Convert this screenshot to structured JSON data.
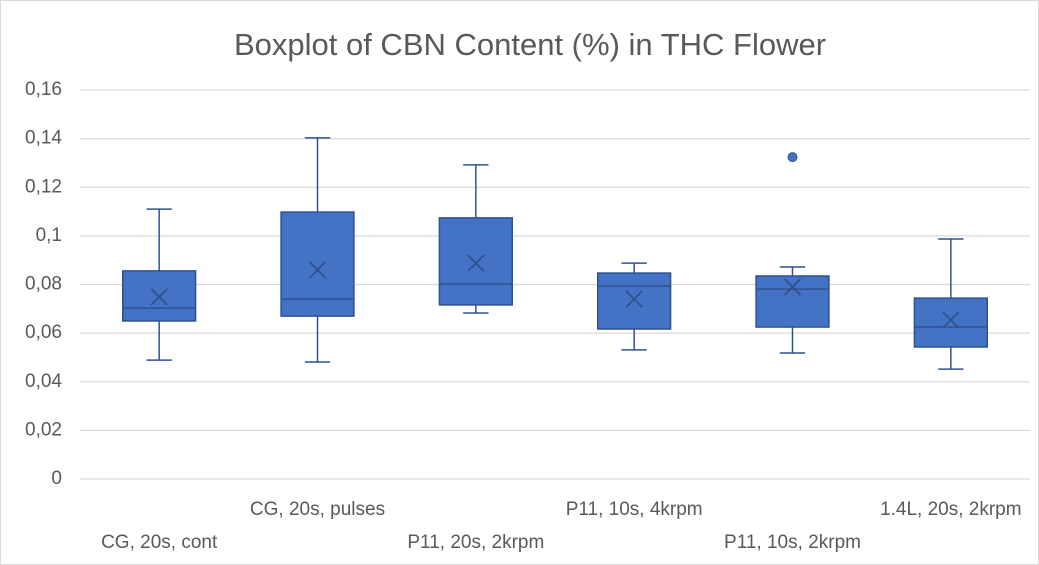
{
  "chart_data": {
    "type": "box",
    "title": "Boxplot of CBN Content (%) in THC Flower",
    "categories": [
      "CG, 20s, cont",
      "CG, 20s, pulses",
      "P11, 20s, 2krpm",
      "P11, 10s, 4krpm",
      "P11, 10s, 2krpm",
      "1.4L, 20s, 2krpm"
    ],
    "boxes": [
      {
        "whisker_low": 0.0489,
        "q1": 0.065,
        "median": 0.0703,
        "q3": 0.0856,
        "whisker_high": 0.111,
        "mean": 0.0749,
        "outliers": []
      },
      {
        "whisker_low": 0.0481,
        "q1": 0.067,
        "median": 0.074,
        "q3": 0.1098,
        "whisker_high": 0.1403,
        "mean": 0.086,
        "outliers": []
      },
      {
        "whisker_low": 0.0683,
        "q1": 0.0716,
        "median": 0.0802,
        "q3": 0.1074,
        "whisker_high": 0.1292,
        "mean": 0.0888,
        "outliers": []
      },
      {
        "whisker_low": 0.0531,
        "q1": 0.0617,
        "median": 0.0794,
        "q3": 0.0847,
        "whisker_high": 0.0888,
        "mean": 0.074,
        "outliers": []
      },
      {
        "whisker_low": 0.0518,
        "q1": 0.0625,
        "median": 0.0781,
        "q3": 0.0835,
        "whisker_high": 0.0872,
        "mean": 0.079,
        "outliers": [
          0.1324
        ]
      },
      {
        "whisker_low": 0.0452,
        "q1": 0.0543,
        "median": 0.0625,
        "q3": 0.0744,
        "whisker_high": 0.0987,
        "mean": 0.0654,
        "outliers": []
      }
    ],
    "color": "#4472c4",
    "edge_color": "#2f528f",
    "ylim": [
      0,
      0.16
    ],
    "yticks": [
      0,
      {
        "value": 0.02,
        "label": "0,02"
      },
      {
        "value": 0.04,
        "label": "0,04"
      },
      {
        "value": 0.06,
        "label": "0,06"
      },
      {
        "value": 0.08,
        "label": "0,08"
      },
      {
        "value": 0.1,
        "label": "0,1"
      },
      {
        "value": 0.12,
        "label": "0,12"
      },
      {
        "value": 0.14,
        "label": "0,14"
      },
      {
        "value": 0.16,
        "label": "0,16"
      }
    ],
    "grid": true
  }
}
